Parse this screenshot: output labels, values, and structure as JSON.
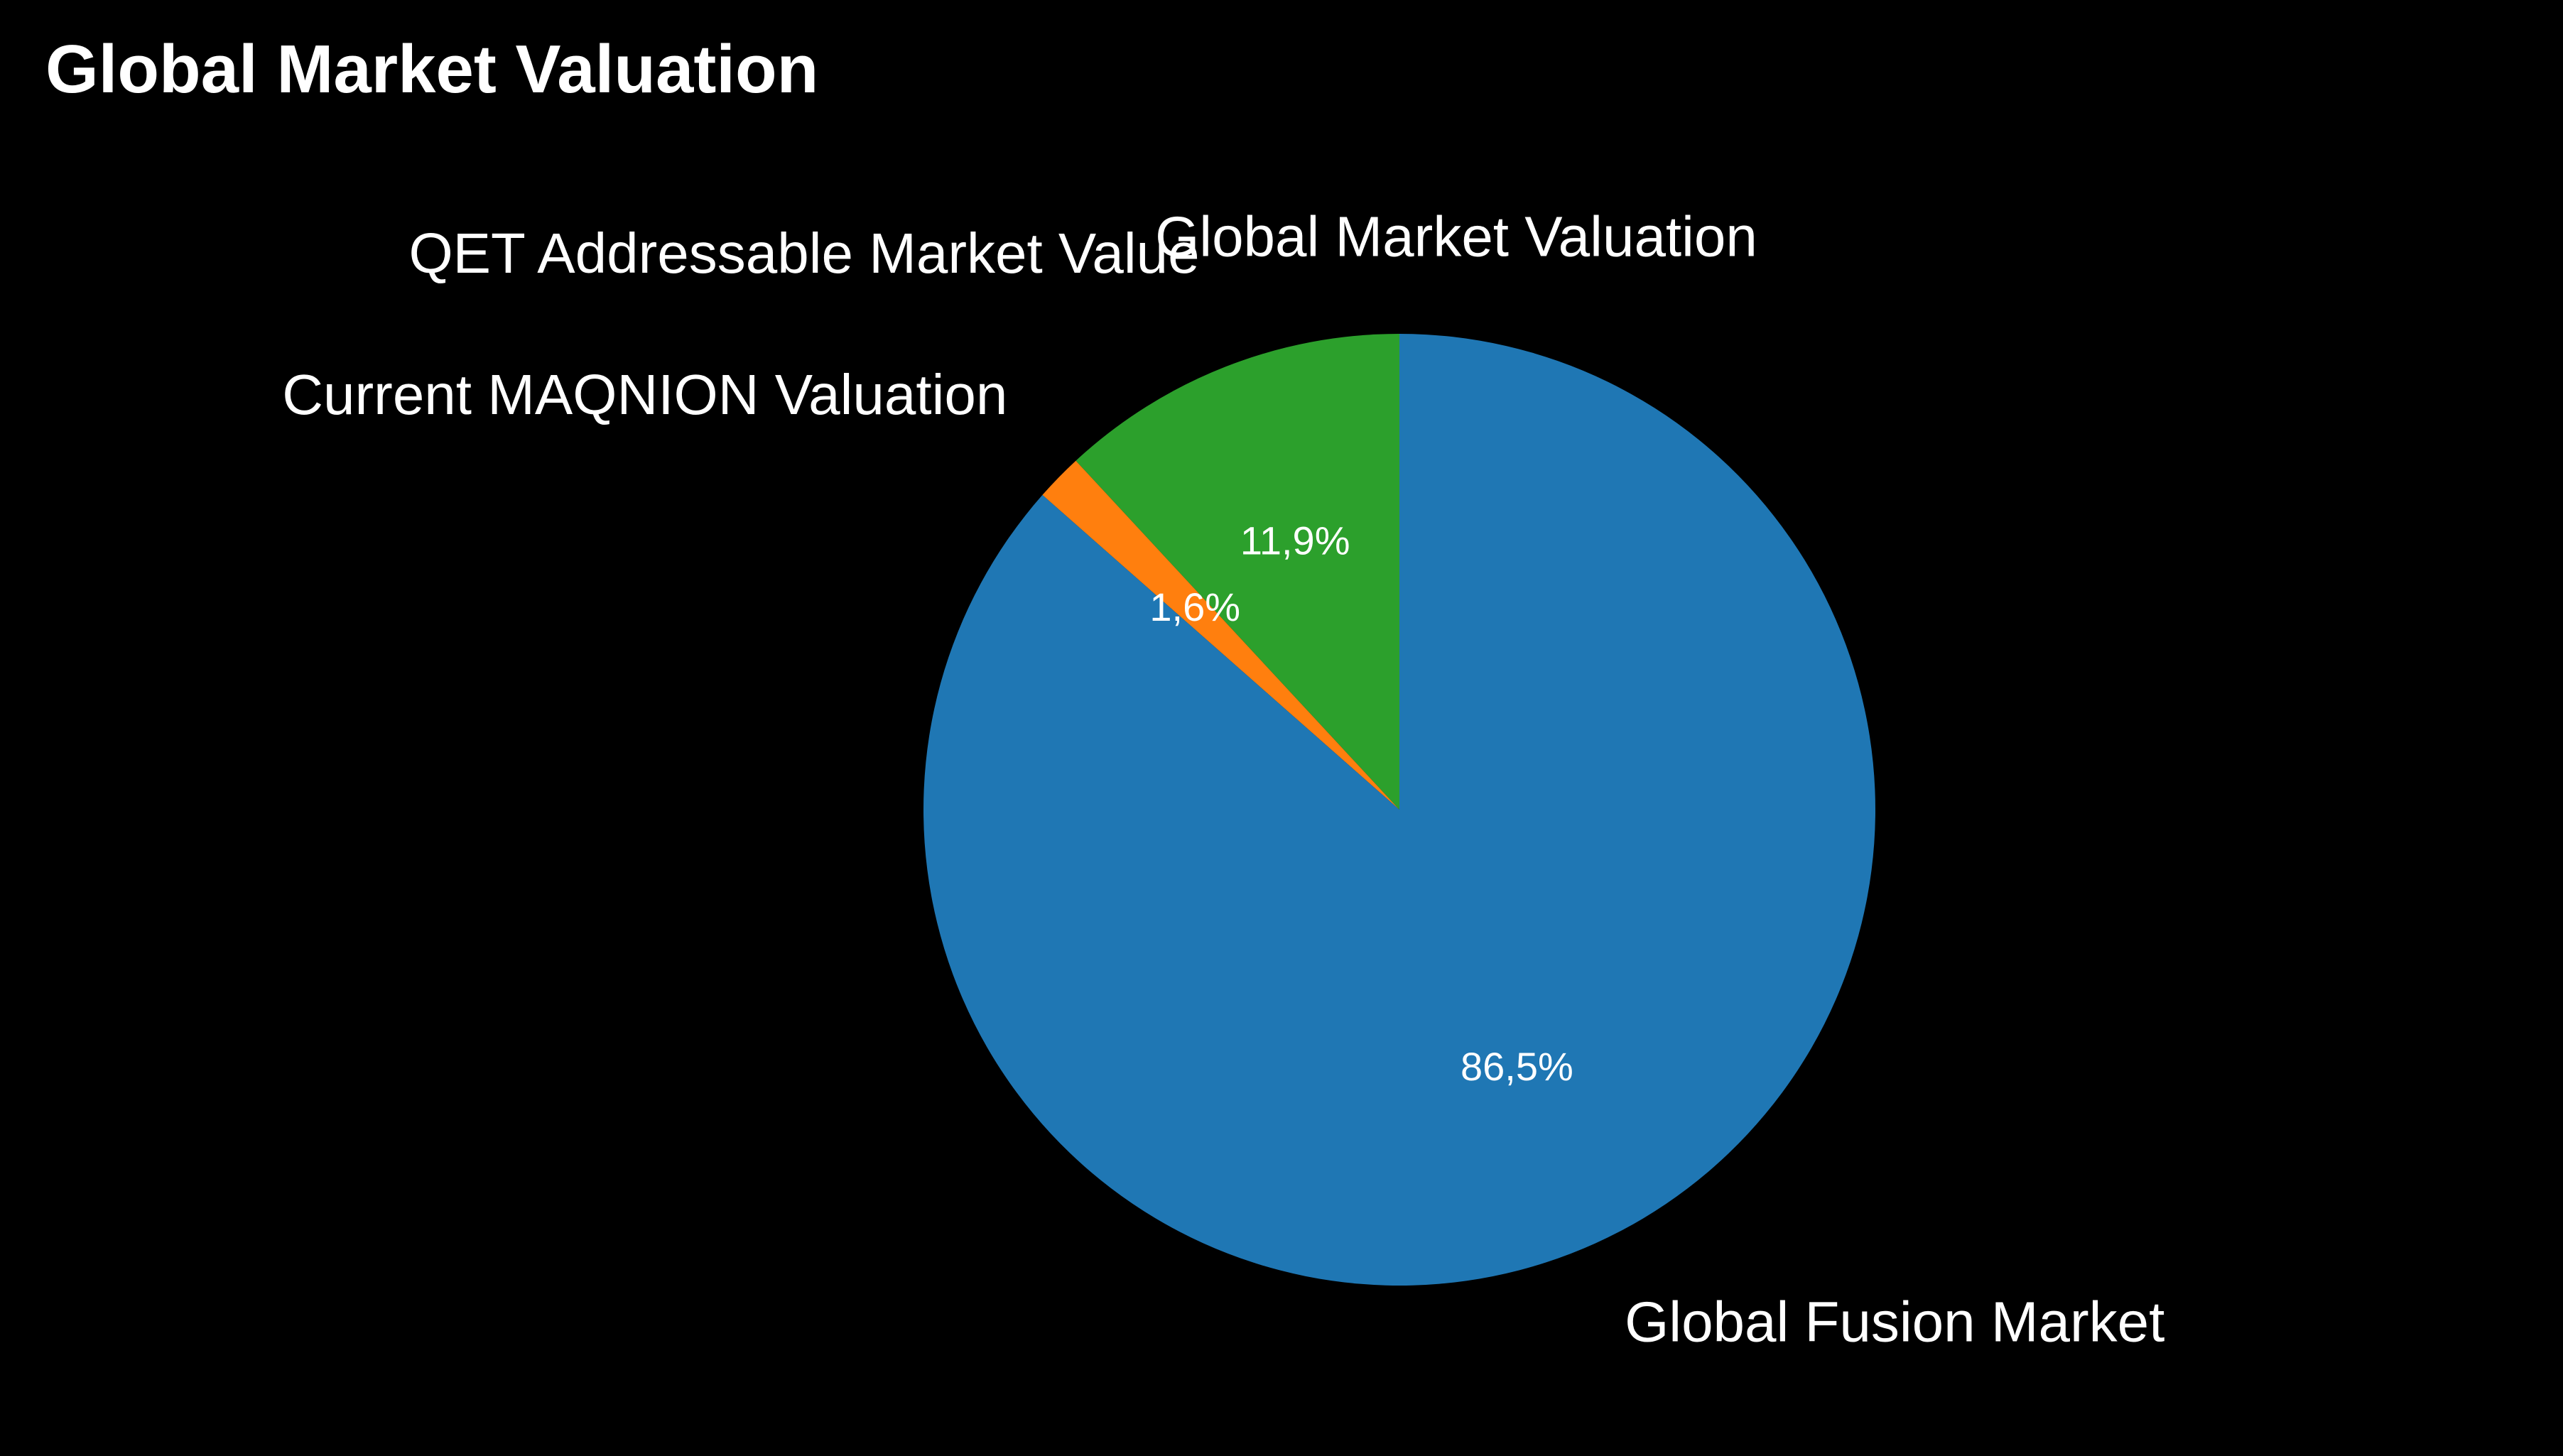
{
  "page": {
    "title": "Global Market Valuation"
  },
  "chart_data": {
    "type": "pie",
    "title": "Global Market Valuation",
    "start_angle_deg": 90,
    "direction": "counterclockwise",
    "slices": [
      {
        "label": "Global Market Valuation",
        "value": 0.0,
        "percent_label": "",
        "color": "#d62728"
      },
      {
        "label": "QET Addressable Market Value",
        "value": 11.9,
        "percent_label": "11,9%",
        "color": "#2ca02c"
      },
      {
        "label": "Current MAQNION Valuation",
        "value": 1.6,
        "percent_label": "1,6%",
        "color": "#ff7f0e"
      },
      {
        "label": "Global Fusion Market",
        "value": 86.5,
        "percent_label": "86,5%",
        "color": "#1f77b4"
      }
    ]
  }
}
